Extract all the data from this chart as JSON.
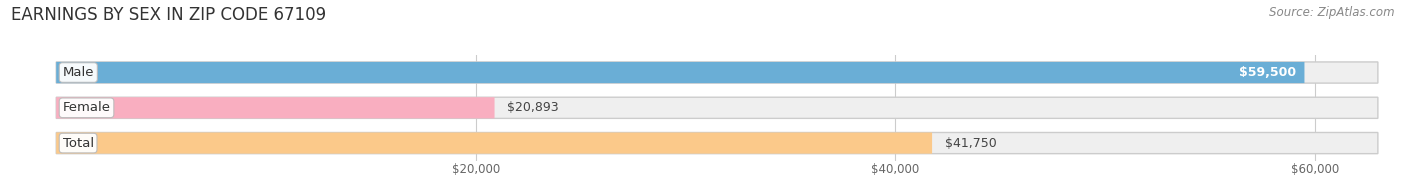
{
  "title": "EARNINGS BY SEX IN ZIP CODE 67109",
  "source": "Source: ZipAtlas.com",
  "categories": [
    "Male",
    "Female",
    "Total"
  ],
  "values": [
    59500,
    20893,
    41750
  ],
  "bar_colors": [
    "#6aaed6",
    "#f9aec0",
    "#fbc98a"
  ],
  "bar_bg_color": "#efefef",
  "value_labels": [
    "$59,500",
    "$20,893",
    "$41,750"
  ],
  "xmin": 0,
  "xmax": 63000,
  "xticks": [
    20000,
    40000,
    60000
  ],
  "xtick_labels": [
    "$20,000",
    "$40,000",
    "$60,000"
  ],
  "title_fontsize": 12,
  "label_fontsize": 9.5,
  "value_fontsize": 9,
  "source_fontsize": 8.5,
  "bar_height": 0.6,
  "bg_color": "#ffffff",
  "grid_color": "#cccccc",
  "bar_edge_color": "#cccccc"
}
